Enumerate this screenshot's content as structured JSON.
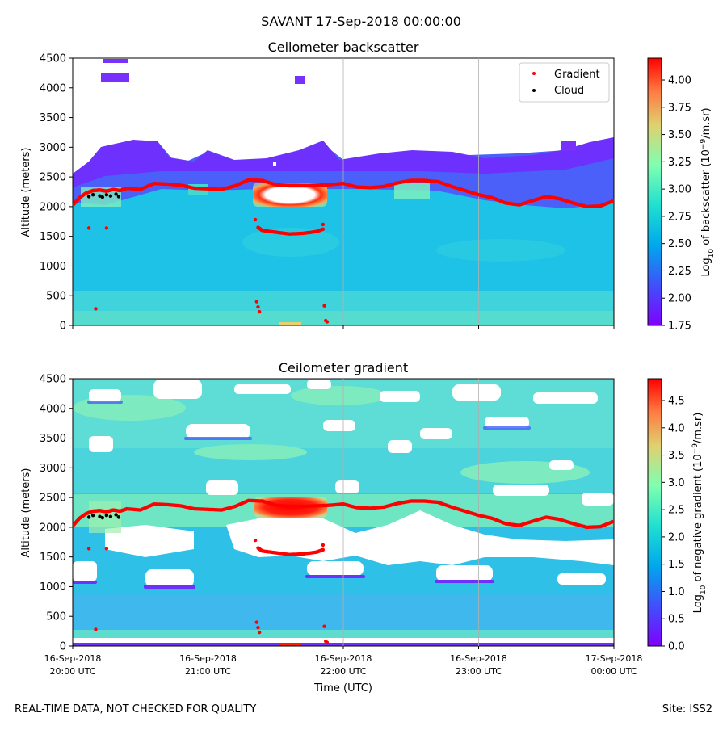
{
  "suptitle": "SAVANT 17-Sep-2018 00:00:00",
  "footer_left": "REAL-TIME DATA, NOT CHECKED FOR QUALITY",
  "footer_right": "Site: ISS2",
  "colors": {
    "gradient_marker": "#ff0000",
    "cloud_marker": "#000000",
    "grid": "#b0b0b0"
  },
  "chart_data": [
    {
      "type": "heatmap",
      "title": "Ceilometer backscatter",
      "ylabel": "Altitude (meters)",
      "ylim": [
        0,
        4500
      ],
      "yticks": [
        0,
        500,
        1000,
        1500,
        2000,
        2500,
        3000,
        3500,
        4000,
        4500
      ],
      "xlim_hours": [
        20,
        24
      ],
      "grid": "vertical",
      "legend_position": "top-right",
      "legend": [
        {
          "label": "Gradient",
          "color": "#ff0000"
        },
        {
          "label": "Cloud",
          "color": "#000000"
        }
      ],
      "colorbar": {
        "label_pre": "Log",
        "label_sub": "10",
        "label_mid": " of backscatter (10",
        "label_sup": "−9",
        "label_post": "/m.sr)",
        "range": [
          1.75,
          4.2
        ],
        "ticks": [
          "1.75",
          "2.00",
          "2.25",
          "2.50",
          "2.75",
          "3.00",
          "3.25",
          "3.50",
          "3.75",
          "4.00"
        ]
      }
    },
    {
      "type": "heatmap",
      "title": "Ceilometer gradient",
      "ylabel": "Altitude (meters)",
      "xlabel": "Time (UTC)",
      "ylim": [
        0,
        4500
      ],
      "yticks": [
        0,
        500,
        1000,
        1500,
        2000,
        2500,
        3000,
        3500,
        4000,
        4500
      ],
      "xlim_hours": [
        20,
        24
      ],
      "grid": "vertical",
      "xticks": [
        {
          "hour": 20,
          "date": "16-Sep-2018",
          "time": "20:00 UTC"
        },
        {
          "hour": 21,
          "date": "16-Sep-2018",
          "time": "21:00 UTC"
        },
        {
          "hour": 22,
          "date": "16-Sep-2018",
          "time": "22:00 UTC"
        },
        {
          "hour": 23,
          "date": "16-Sep-2018",
          "time": "23:00 UTC"
        },
        {
          "hour": 24,
          "date": "17-Sep-2018",
          "time": "00:00 UTC"
        }
      ],
      "colorbar": {
        "label_pre": "Log",
        "label_sub": "10",
        "label_mid": " of negative gradient (10",
        "label_sup": "−9",
        "label_post": "/m.sr)",
        "range": [
          0,
          4.9
        ],
        "ticks": [
          "0.0",
          "0.5",
          "1.0",
          "1.5",
          "2.0",
          "2.5",
          "3.0",
          "3.5",
          "4.0",
          "4.5"
        ]
      }
    }
  ],
  "gradient_series": {
    "name": "Gradient",
    "hours": [
      20.0,
      20.05,
      20.1,
      20.15,
      20.2,
      20.25,
      20.3,
      20.35,
      20.4,
      20.5,
      20.6,
      20.7,
      20.8,
      20.9,
      21.0,
      21.1,
      21.2,
      21.3,
      21.4,
      21.5,
      21.6,
      21.7,
      21.8,
      21.9,
      22.0,
      22.1,
      22.2,
      22.3,
      22.4,
      22.5,
      22.6,
      22.7,
      22.8,
      22.9,
      23.0,
      23.1,
      23.2,
      23.3,
      23.4,
      23.5,
      23.6,
      23.7,
      23.8,
      23.9,
      24.0
    ],
    "altitude": [
      2020,
      2150,
      2230,
      2270,
      2280,
      2260,
      2290,
      2270,
      2310,
      2290,
      2390,
      2380,
      2360,
      2310,
      2300,
      2290,
      2350,
      2450,
      2440,
      2370,
      2350,
      2350,
      2360,
      2370,
      2390,
      2330,
      2320,
      2340,
      2400,
      2440,
      2440,
      2420,
      2340,
      2270,
      2200,
      2150,
      2060,
      2030,
      2100,
      2170,
      2130,
      2060,
      2000,
      2010,
      2100
    ]
  },
  "gradient_lower_layer": {
    "name": "Gradient",
    "hours": [
      21.37,
      21.4,
      21.5,
      21.6,
      21.7,
      21.8,
      21.85
    ],
    "altitude": [
      1650,
      1600,
      1570,
      1540,
      1550,
      1580,
      1620
    ]
  },
  "gradient_isolated": {
    "name": "Gradient",
    "hours": [
      20.12,
      20.17,
      20.25,
      21.35,
      21.36,
      21.37,
      21.38,
      21.85,
      21.86,
      21.87,
      21.88
    ],
    "altitude": [
      1640,
      280,
      1640,
      1780,
      400,
      310,
      230,
      1700,
      330,
      80,
      60
    ]
  },
  "cloud_series": {
    "name": "Cloud",
    "hours": [
      20.12,
      20.15,
      20.2,
      20.22,
      20.25,
      20.28,
      20.32,
      20.34
    ],
    "altitude": [
      2170,
      2200,
      2180,
      2160,
      2200,
      2180,
      2210,
      2170
    ]
  }
}
